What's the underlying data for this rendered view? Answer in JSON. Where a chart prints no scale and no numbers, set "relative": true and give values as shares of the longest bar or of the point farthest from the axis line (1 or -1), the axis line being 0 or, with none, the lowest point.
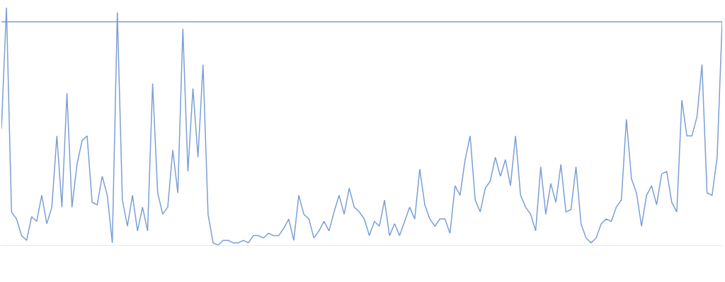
{
  "chart_data": {
    "type": "line",
    "relative": true,
    "tick_labels": false,
    "marker": "none",
    "line_style": "solid",
    "categories": [
      null,
      null,
      null,
      null,
      null,
      null,
      null,
      null,
      null,
      null,
      null,
      null,
      null,
      null,
      null,
      null,
      null,
      null,
      null,
      null,
      null,
      null,
      null,
      null,
      null,
      null,
      null,
      null,
      null,
      null,
      null,
      null,
      null,
      null,
      null,
      null,
      null,
      null,
      null,
      null,
      null,
      null,
      null,
      null,
      null,
      null,
      null,
      null,
      null,
      null,
      null,
      null,
      null,
      null,
      null,
      null,
      null,
      null,
      null,
      null,
      null,
      null,
      null,
      null,
      null,
      null,
      null,
      null,
      null,
      null,
      null,
      null,
      null,
      null,
      null,
      null,
      null,
      null,
      null,
      null,
      null,
      null,
      null,
      null,
      null,
      null,
      null,
      null,
      null,
      null,
      null,
      null,
      null,
      null,
      null,
      null,
      null,
      null,
      null,
      null,
      null,
      null,
      null,
      null,
      null,
      null,
      null,
      null,
      null,
      null,
      null,
      null,
      null,
      null,
      null,
      null,
      null,
      null,
      null,
      null,
      null,
      null,
      null,
      null,
      null,
      null,
      null,
      null,
      null,
      null,
      null,
      null,
      null,
      null,
      null,
      null,
      null,
      null,
      null,
      null,
      null,
      null,
      null,
      null
    ],
    "series": [
      {
        "color": "#7b9fd6",
        "values": [
          0.49,
          1,
          0.14,
          0.11,
          0.04,
          0.02,
          0.12,
          0.1,
          0.21,
          0.09,
          0.16,
          0.46,
          0.16,
          0.64,
          0.16,
          0.34,
          0.44,
          0.46,
          0.18,
          0.17,
          0.29,
          0.21,
          0.01,
          0.98,
          0.19,
          0.08,
          0.21,
          0.06,
          0.16,
          0.06,
          0.68,
          0.22,
          0.13,
          0.16,
          0.4,
          0.22,
          0.91,
          0.31,
          0.66,
          0.37,
          0.76,
          0.13,
          0.01,
          0.0,
          0.02,
          0.02,
          0.01,
          0.01,
          0.02,
          0.01,
          0.04,
          0.04,
          0.03,
          0.05,
          0.04,
          0.04,
          0.07,
          0.11,
          0.02,
          0.21,
          0.13,
          0.11,
          0.03,
          0.06,
          0.1,
          0.06,
          0.14,
          0.21,
          0.13,
          0.24,
          0.16,
          0.14,
          0.11,
          0.04,
          0.1,
          0.08,
          0.19,
          0.04,
          0.09,
          0.04,
          0.1,
          0.16,
          0.11,
          0.32,
          0.17,
          0.11,
          0.08,
          0.11,
          0.11,
          0.05,
          0.25,
          0.21,
          0.36,
          0.46,
          0.19,
          0.14,
          0.24,
          0.27,
          0.37,
          0.29,
          0.36,
          0.25,
          0.46,
          0.21,
          0.16,
          0.13,
          0.06,
          0.33,
          0.13,
          0.26,
          0.18,
          0.34,
          0.14,
          0.15,
          0.33,
          0.09,
          0.03,
          0.01,
          0.03,
          0.09,
          0.11,
          0.1,
          0.16,
          0.19,
          0.53,
          0.28,
          0.22,
          0.08,
          0.21,
          0.25,
          0.17,
          0.3,
          0.31,
          0.18,
          0.14,
          0.61,
          0.46,
          0.46,
          0.54,
          0.76,
          0.22,
          0.21,
          0.37,
          0.94
        ]
      }
    ],
    "ref_lines": [
      {
        "axis": "y",
        "value": 0.94,
        "color": "#7b9fd6",
        "line_style": "solid"
      }
    ]
  }
}
